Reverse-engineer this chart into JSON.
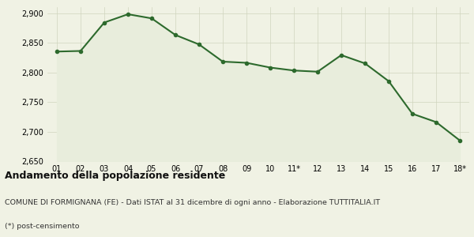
{
  "x_labels": [
    "01",
    "02",
    "03",
    "04",
    "05",
    "06",
    "07",
    "08",
    "09",
    "10",
    "11*",
    "12",
    "13",
    "14",
    "15",
    "16",
    "17",
    "18*"
  ],
  "x_values": [
    0,
    1,
    2,
    3,
    4,
    5,
    6,
    7,
    8,
    9,
    10,
    11,
    12,
    13,
    14,
    15,
    16,
    17
  ],
  "y_values": [
    2835,
    2836,
    2884,
    2898,
    2891,
    2863,
    2847,
    2818,
    2816,
    2808,
    2803,
    2801,
    2829,
    2815,
    2785,
    2730,
    2716,
    2685
  ],
  "line_color": "#2d6a2d",
  "fill_color": "#e8eddc",
  "marker": "o",
  "marker_size": 3,
  "linewidth": 1.5,
  "ylim": [
    2650,
    2910
  ],
  "yticks": [
    2650,
    2700,
    2750,
    2800,
    2850,
    2900
  ],
  "background_color": "#f0f2e4",
  "grid_color": "#d0d4be",
  "title": "Andamento della popolazione residente",
  "subtitle": "COMUNE DI FORMIGNANA (FE) - Dati ISTAT al 31 dicembre di ogni anno - Elaborazione TUTTITALIA.IT",
  "footnote": "(*) post-censimento",
  "title_fontsize": 9,
  "subtitle_fontsize": 6.8,
  "footnote_fontsize": 6.8,
  "tick_fontsize": 7
}
